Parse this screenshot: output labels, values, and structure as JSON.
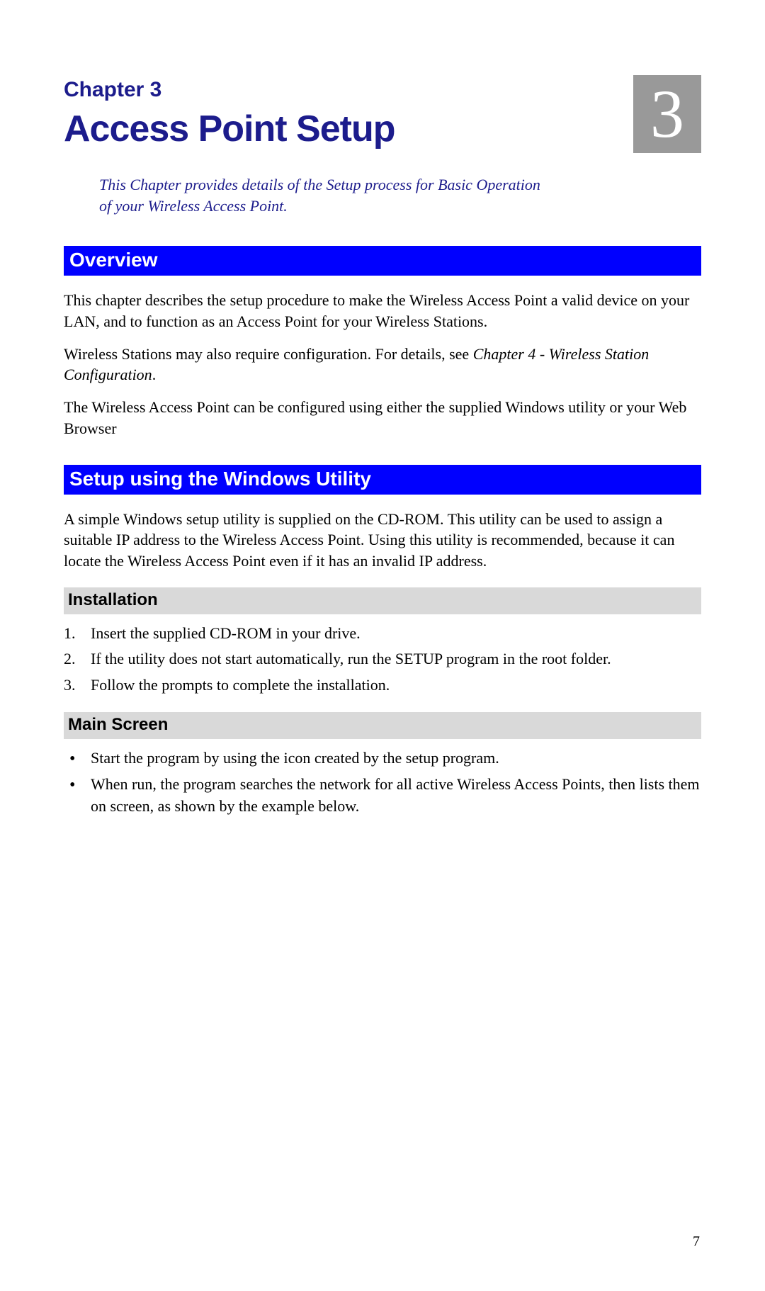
{
  "colors": {
    "heading_navy": "#1c1c8c",
    "section_blue_bg": "#0000ff",
    "section_blue_fg": "#ffffff",
    "sub_grey_bg": "#d9d9d9",
    "bignum_bg": "#999999",
    "bignum_fg": "#ffffff",
    "body_text": "#000000",
    "page_bg": "#ffffff"
  },
  "typography": {
    "chapter_label_size_pt": 22,
    "chapter_title_size_pt": 38,
    "bignum_size_pt": 72,
    "blue_heading_size_pt": 21,
    "grey_subheading_size_pt": 18,
    "body_size_pt": 16,
    "body_font": "Times New Roman",
    "heading_font": "Arial"
  },
  "header": {
    "chapter_label": "Chapter 3",
    "title": "Access Point Setup",
    "big_number": "3"
  },
  "intro": "This Chapter provides details of the Setup process for Basic Operation of your Wireless Access Point.",
  "sections": {
    "overview": {
      "heading": "Overview",
      "p1": "This chapter describes the setup procedure to make the Wireless Access Point a valid device on your LAN, and to function as an Access Point for your Wireless Stations.",
      "p2_a": "Wireless Stations may also require configuration. For details, see ",
      "p2_i": "Chapter 4 - Wireless Station Configuration",
      "p2_b": ".",
      "p3": "The Wireless Access Point can be configured using either the supplied Windows utility or your Web Browser"
    },
    "setup": {
      "heading": "Setup using the Windows Utility",
      "intro": "A simple Windows setup utility is supplied on the CD-ROM. This utility can be used to assign a suitable IP address to the Wireless Access Point. Using this utility is recommended, because it can locate the Wireless Access Point even if it has an invalid IP address.",
      "installation": {
        "heading": "Installation",
        "items": [
          "Insert the supplied CD-ROM in your drive.",
          "If the utility does not start automatically, run the SETUP program in the root folder.",
          "Follow the prompts to complete the installation."
        ]
      },
      "mainscreen": {
        "heading": "Main Screen",
        "items": [
          "Start the program by using the icon created by the setup program.",
          "When run, the program searches the network for all active Wireless Access Points, then lists them on screen, as shown by the example below."
        ]
      }
    }
  },
  "page_number": "7"
}
